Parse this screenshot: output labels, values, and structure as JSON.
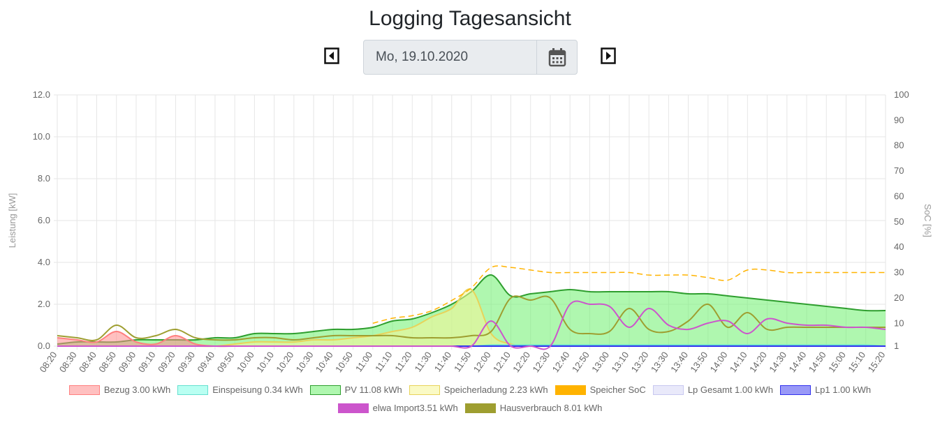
{
  "page": {
    "title": "Logging Tagesansicht",
    "date_value": "Mo, 19.10.2020",
    "prev_icon": "caret-left-icon",
    "next_icon": "caret-right-icon",
    "calendar_icon": "calendar-icon"
  },
  "chart_data": {
    "type": "area",
    "ylabel_left": "Leistung [kW]",
    "ylabel_right": "SoC [%]",
    "ylim_left": [
      0,
      12
    ],
    "y_ticks_left": [
      "0.0",
      "2.0",
      "4.0",
      "6.0",
      "8.0",
      "10.0",
      "12.0"
    ],
    "y_ticks_right": [
      "1",
      "10",
      "20",
      "30",
      "40",
      "50",
      "60",
      "70",
      "80",
      "90",
      "100"
    ],
    "x_ticks": [
      "08:20",
      "08:30",
      "08:40",
      "08:50",
      "09:00",
      "09:10",
      "09:20",
      "09:30",
      "09:40",
      "09:50",
      "10:00",
      "10:10",
      "10:20",
      "10:30",
      "10:40",
      "10:50",
      "11:00",
      "11:10",
      "11:20",
      "11:30",
      "11:40",
      "11:50",
      "12:00",
      "12:10",
      "12:20",
      "12:30",
      "12:40",
      "12:50",
      "13:00",
      "13:10",
      "13:20",
      "13:30",
      "13:40",
      "13:50",
      "14:00",
      "14:10",
      "14:20",
      "14:30",
      "14:40",
      "14:50",
      "15:00",
      "15:10",
      "15:20"
    ],
    "grid": true,
    "legend_position": "bottom",
    "series": [
      {
        "name": "Bezug 3.00 kWh",
        "color": "#ff7f7f",
        "fill": "rgba(255,140,140,0.55)",
        "axis": "left",
        "values": [
          0.4,
          0.3,
          0.2,
          0.7,
          0.2,
          0.1,
          0.5,
          0.1,
          0,
          0,
          0,
          0,
          0,
          0,
          0,
          0,
          0,
          0,
          0,
          0,
          0,
          0,
          0,
          0,
          0,
          0,
          0,
          0,
          0,
          0,
          0,
          0,
          0,
          0,
          0,
          0,
          0,
          0,
          0,
          0,
          0,
          0,
          0
        ]
      },
      {
        "name": "Einspeisung 0.34 kWh",
        "color": "#66e0d0",
        "fill": "rgba(128,255,232,0.55)",
        "axis": "left",
        "values": [
          0,
          0,
          0,
          0,
          0,
          0,
          0,
          0,
          0,
          0,
          0,
          0,
          0,
          0,
          0,
          0,
          0,
          0,
          0,
          0,
          0,
          0,
          0.05,
          0.05,
          0.05,
          0.05,
          0.05,
          0.05,
          0.05,
          0.05,
          0.05,
          0.05,
          0.05,
          0.05,
          0.05,
          0.05,
          0.05,
          0.05,
          0.05,
          0.05,
          0.05,
          0.05,
          0
        ]
      },
      {
        "name": "PV 11.08 kWh",
        "color": "#2e9e2e",
        "fill": "rgba(110,240,110,0.55)",
        "axis": "left",
        "values": [
          0.1,
          0.2,
          0.2,
          0.2,
          0.3,
          0.3,
          0.3,
          0.3,
          0.4,
          0.4,
          0.6,
          0.6,
          0.6,
          0.7,
          0.8,
          0.8,
          0.9,
          1.2,
          1.3,
          1.6,
          2.0,
          2.6,
          3.4,
          2.4,
          2.5,
          2.6,
          2.7,
          2.6,
          2.6,
          2.6,
          2.6,
          2.6,
          2.5,
          2.5,
          2.4,
          2.3,
          2.2,
          2.1,
          2.0,
          1.9,
          1.8,
          1.7,
          1.7
        ]
      },
      {
        "name": "Speicherladung 2.23 kWh",
        "color": "#e8d35a",
        "fill": "rgba(245,245,150,0.55)",
        "axis": "left",
        "values": [
          0,
          0,
          0,
          0,
          0,
          0,
          0,
          0,
          0,
          0.1,
          0.2,
          0.2,
          0.2,
          0.3,
          0.3,
          0.4,
          0.5,
          0.7,
          0.9,
          1.4,
          1.8,
          2.7,
          0.6,
          0.1,
          0,
          0,
          0,
          0,
          0,
          0,
          0,
          0,
          0,
          0,
          0,
          0,
          0,
          0,
          0,
          0,
          0,
          0,
          0
        ]
      },
      {
        "name": "Speicher SoC",
        "color": "#ffb300",
        "fill": "none",
        "axis": "right",
        "dashed": true,
        "values": [
          null,
          null,
          null,
          null,
          null,
          null,
          null,
          null,
          null,
          null,
          null,
          null,
          null,
          null,
          null,
          null,
          10,
          12,
          13,
          15,
          19,
          24,
          32,
          32,
          31,
          30,
          30,
          30,
          30,
          30,
          29,
          29,
          29,
          28,
          27,
          31,
          31,
          30,
          30,
          30,
          30,
          30,
          30
        ]
      },
      {
        "name": "Lp Gesamt 1.00 kWh",
        "color": "#c8c8f0",
        "fill": "rgba(215,215,245,0.55)",
        "axis": "left",
        "values": [
          0,
          0,
          0,
          0,
          0,
          0,
          0,
          0,
          0,
          0,
          0,
          0,
          0,
          0,
          0,
          0,
          0,
          0,
          0,
          0,
          0,
          0,
          0,
          0,
          0,
          0,
          0,
          0,
          0,
          0,
          0,
          0,
          0,
          0,
          0,
          0,
          0,
          0,
          0,
          0,
          0,
          0,
          0
        ]
      },
      {
        "name": "Lp1 1.00 kWh",
        "color": "#3333ee",
        "fill": "rgba(70,70,240,0.55)",
        "axis": "left",
        "values": [
          0,
          0,
          0,
          0,
          0,
          0,
          0,
          0,
          0,
          0,
          0,
          0,
          0,
          0,
          0,
          0,
          0,
          0,
          0,
          0,
          0,
          0,
          0,
          0,
          0,
          0,
          0,
          0,
          0,
          0,
          0,
          0,
          0,
          0,
          0,
          0,
          0,
          0,
          0,
          0,
          0,
          0,
          0
        ]
      },
      {
        "name": "elwa Import3.51 kWh",
        "color": "#cc55cc",
        "fill": "none",
        "axis": "left",
        "values": [
          0,
          0,
          0,
          0,
          0,
          0,
          0,
          0,
          0,
          0,
          0,
          0,
          0,
          0,
          0,
          0,
          0,
          0,
          0,
          0,
          0,
          0,
          1.2,
          0,
          0,
          0,
          2.0,
          2.0,
          1.9,
          0.9,
          1.8,
          1.0,
          0.8,
          1.1,
          1.2,
          0.6,
          1.3,
          1.1,
          1.0,
          1.0,
          0.9,
          0.9,
          0.8
        ]
      },
      {
        "name": "Hausverbrauch 8.01 kWh",
        "color": "#9e9e30",
        "fill": "none",
        "axis": "left",
        "values": [
          0.5,
          0.4,
          0.3,
          1.0,
          0.4,
          0.5,
          0.8,
          0.4,
          0.3,
          0.3,
          0.4,
          0.4,
          0.3,
          0.4,
          0.5,
          0.5,
          0.5,
          0.5,
          0.4,
          0.4,
          0.4,
          0.5,
          0.7,
          2.3,
          2.2,
          2.3,
          0.8,
          0.6,
          0.7,
          1.8,
          0.8,
          0.7,
          1.2,
          2.0,
          0.9,
          1.6,
          0.8,
          0.9,
          0.9,
          0.9,
          0.9,
          0.9,
          0.9
        ]
      }
    ]
  }
}
